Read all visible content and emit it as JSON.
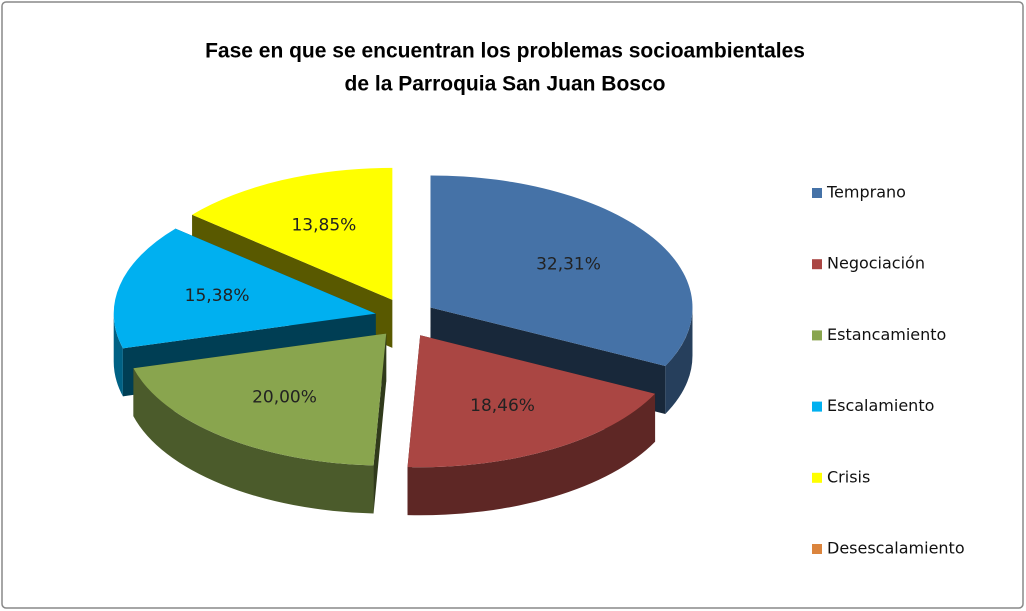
{
  "chart_data": {
    "type": "pie3d",
    "title": [
      "Fase en que se encuentran los problemas socioambientales",
      "de la Parroquia San Juan Bosco"
    ],
    "categories": [
      "Temprano",
      "Negociación",
      "Estancamiento",
      "Escalamiento",
      "Crisis",
      "Desescalamiento"
    ],
    "values": [
      32.31,
      18.46,
      20.0,
      15.38,
      13.85,
      0
    ],
    "value_labels": [
      "32,31%",
      "18,46%",
      "20,00%",
      "15,38%",
      "13,85%",
      null
    ],
    "colors": [
      "#4572A7",
      "#AA4643",
      "#89A54E",
      "#00B0F0",
      "#FFFF00",
      "#DB843D"
    ],
    "legend": "right"
  }
}
